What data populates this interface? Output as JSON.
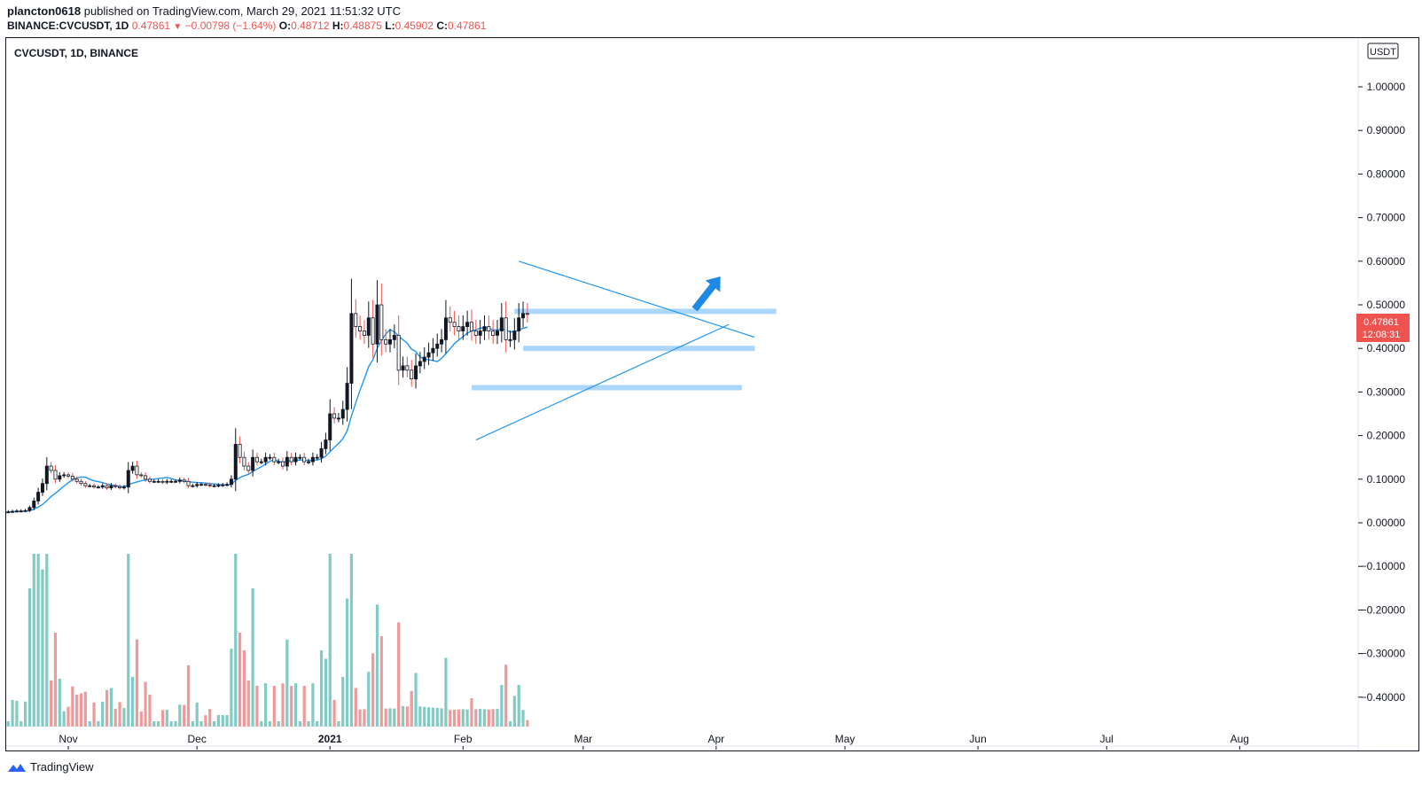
{
  "header": {
    "author": "plancton0618",
    "published_text": "published on TradingView.com, March 29, 2021 11:51:32 UTC",
    "symbol_full": "BINANCE:CVCUSDT, 1D",
    "last": "0.47861",
    "change": "−0.00798 (−1.64%)",
    "o_label": "O:",
    "o_value": "0.48712",
    "h_label": "H:",
    "h_value": "0.48875",
    "l_label": "L:",
    "l_value": "0.45902",
    "c_label": "C:",
    "c_value": "0.47861"
  },
  "chart_title": "CVCUSDT, 1D, BINANCE",
  "currency_badge": "USDT",
  "price_label": {
    "value": "0.47861",
    "countdown": "12:08:31",
    "color": "#ef5350"
  },
  "footer": {
    "brand": "TradingView"
  },
  "colors": {
    "up": "#26a69a",
    "down": "#ef5350",
    "candle": "#131722",
    "ma": "#2196f3",
    "zone": "#90caf9",
    "arrow": "#1e88e5"
  },
  "chart_data": {
    "type": "candlestick",
    "y_axis": {
      "ticks": [
        "1.00000",
        "0.90000",
        "0.80000",
        "0.70000",
        "0.60000",
        "0.50000",
        "0.40000",
        "0.30000",
        "0.20000",
        "0.10000",
        "0.00000",
        "−0.10000",
        "−0.20000",
        "−0.30000",
        "−0.40000"
      ],
      "range": [
        -0.46,
        1.1
      ]
    },
    "x_axis": {
      "ticks": [
        {
          "label": "Nov",
          "day": 0
        },
        {
          "label": "Dec",
          "day": 30
        },
        {
          "label": "2021",
          "day": 61
        },
        {
          "label": "Feb",
          "day": 92
        },
        {
          "label": "Mar",
          "day": 120
        },
        {
          "label": "Apr",
          "day": 151
        },
        {
          "label": "May",
          "day": 181
        },
        {
          "label": "Jun",
          "day": 212
        },
        {
          "label": "Jul",
          "day": 242
        },
        {
          "label": "Aug",
          "day": 273
        }
      ],
      "bold": [
        "2021"
      ]
    },
    "daily_close": [
      0.025,
      0.026,
      0.027,
      0.027,
      0.028,
      0.035,
      0.05,
      0.07,
      0.09,
      0.13,
      0.12,
      0.1,
      0.108,
      0.11,
      0.107,
      0.1,
      0.095,
      0.09,
      0.085,
      0.085,
      0.082,
      0.082,
      0.085,
      0.08,
      0.085,
      0.083,
      0.08,
      0.082,
      0.12,
      0.13,
      0.11,
      0.108,
      0.1,
      0.095,
      0.095,
      0.095,
      0.093,
      0.095,
      0.095,
      0.095,
      0.098,
      0.095,
      0.085,
      0.085,
      0.088,
      0.088,
      0.087,
      0.085,
      0.085,
      0.086,
      0.087,
      0.088,
      0.1,
      0.18,
      0.15,
      0.13,
      0.12,
      0.15,
      0.14,
      0.14,
      0.15,
      0.15,
      0.14,
      0.14,
      0.13,
      0.15,
      0.14,
      0.15,
      0.15,
      0.14,
      0.14,
      0.15,
      0.15,
      0.17,
      0.19,
      0.25,
      0.24,
      0.24,
      0.26,
      0.32,
      0.48,
      0.45,
      0.44,
      0.43,
      0.47,
      0.41,
      0.5,
      0.42,
      0.41,
      0.42,
      0.43,
      0.35,
      0.36,
      0.35,
      0.33,
      0.36,
      0.37,
      0.38,
      0.39,
      0.4,
      0.41,
      0.42,
      0.47,
      0.46,
      0.45,
      0.44,
      0.45,
      0.46,
      0.44,
      0.43,
      0.44,
      0.45,
      0.44,
      0.43,
      0.44,
      0.47,
      0.42,
      0.42,
      0.44,
      0.47,
      0.48,
      0.479
    ],
    "support_resistance_zones": [
      0.485,
      0.4,
      0.31
    ],
    "trendlines": [
      {
        "name": "descending",
        "from": {
          "day": 105,
          "price": 0.6
        },
        "to": {
          "day": 157,
          "price": 0.435
        }
      },
      {
        "name": "ascending",
        "from": {
          "day": 95,
          "price": 0.19
        },
        "to": {
          "day": 154,
          "price": 0.455
        }
      }
    ],
    "arrow": {
      "from": {
        "day": 146,
        "price": 0.49
      },
      "to": {
        "day": 152,
        "price": 0.565
      }
    }
  }
}
